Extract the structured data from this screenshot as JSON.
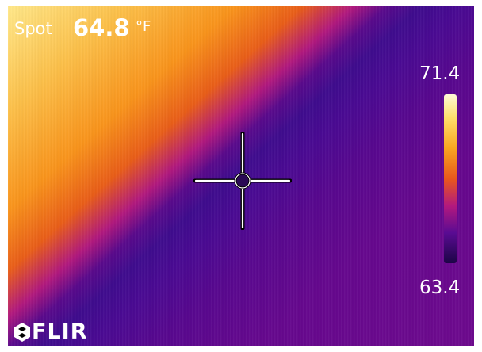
{
  "overlay": {
    "spot_label": "Spot",
    "spot_value": "64.8",
    "spot_unit": "°F",
    "scale_max": "71.4",
    "scale_min": "63.4",
    "brand": "FLIR"
  },
  "icons": {
    "crosshair": "crosshair-icon",
    "logo": "flir-logo-icon"
  },
  "colors": {
    "palette": "ironbow",
    "hot": "#ffe88a",
    "warm": "#f9941c",
    "cool": "#5a0a8c",
    "text": "#ffffff"
  }
}
